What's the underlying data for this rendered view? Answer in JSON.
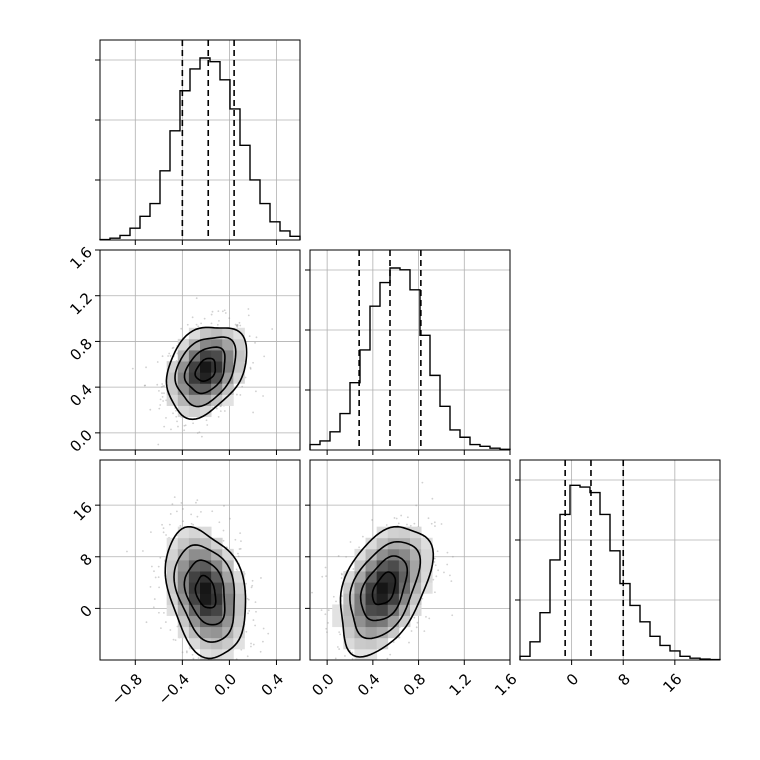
{
  "chart_data": {
    "type": "corner",
    "parameters": [
      {
        "ticks": [
          -0.8,
          -0.4,
          0.0,
          0.4
        ],
        "tick_labels": [
          "−0.8",
          "−0.4",
          "0.0",
          "0.4"
        ],
        "range": [
          -1.1,
          0.6
        ],
        "quantiles": [
          -0.4,
          -0.18,
          0.04
        ],
        "hist_bins": [
          0.002,
          0.01,
          0.025,
          0.065,
          0.13,
          0.2,
          0.38,
          0.6,
          0.82,
          0.94,
          1.0,
          0.98,
          0.88,
          0.72,
          0.52,
          0.33,
          0.2,
          0.1,
          0.05,
          0.02
        ]
      },
      {
        "ticks": [
          0.0,
          0.4,
          0.8,
          1.2,
          1.6
        ],
        "tick_labels": [
          "0.0",
          "0.4",
          "0.8",
          "1.2",
          "1.6"
        ],
        "range": [
          -0.15,
          1.6
        ],
        "quantiles": [
          0.28,
          0.55,
          0.82
        ],
        "hist_bins": [
          0.03,
          0.05,
          0.1,
          0.2,
          0.37,
          0.55,
          0.79,
          0.92,
          1.0,
          0.99,
          0.88,
          0.63,
          0.41,
          0.24,
          0.11,
          0.07,
          0.03,
          0.02,
          0.01,
          0.004
        ]
      },
      {
        "ticks": [
          0,
          8,
          16
        ],
        "tick_labels": [
          "0",
          "8",
          "16"
        ],
        "range": [
          -8,
          23
        ],
        "quantiles": [
          -1,
          3,
          8
        ],
        "hist_bins": [
          0.02,
          0.1,
          0.26,
          0.55,
          0.8,
          0.96,
          0.95,
          0.92,
          0.8,
          0.6,
          0.42,
          0.3,
          0.21,
          0.13,
          0.08,
          0.05,
          0.02,
          0.01,
          0.005,
          0.002
        ]
      }
    ],
    "joint_2d": [
      {
        "x_param": 0,
        "y_param": 1,
        "center": [
          -0.2,
          0.55
        ],
        "sd": [
          0.17,
          0.2
        ],
        "correlation": 0.3
      },
      {
        "x_param": 0,
        "y_param": 2,
        "center": [
          -0.2,
          2.5
        ],
        "sd": [
          0.17,
          5.0
        ],
        "correlation": -0.28
      },
      {
        "x_param": 1,
        "y_param": 2,
        "center": [
          0.5,
          3.0
        ],
        "sd": [
          0.2,
          5.0
        ],
        "correlation": 0.42
      }
    ],
    "contour_levels_sigma": [
      0.5,
      1.0,
      1.5,
      2.0
    ],
    "grid": true,
    "quantile_line_style": "dashed",
    "colors": {
      "line": "#000000",
      "grid": "#b0b0b0",
      "points": "#9a9a9a"
    }
  }
}
